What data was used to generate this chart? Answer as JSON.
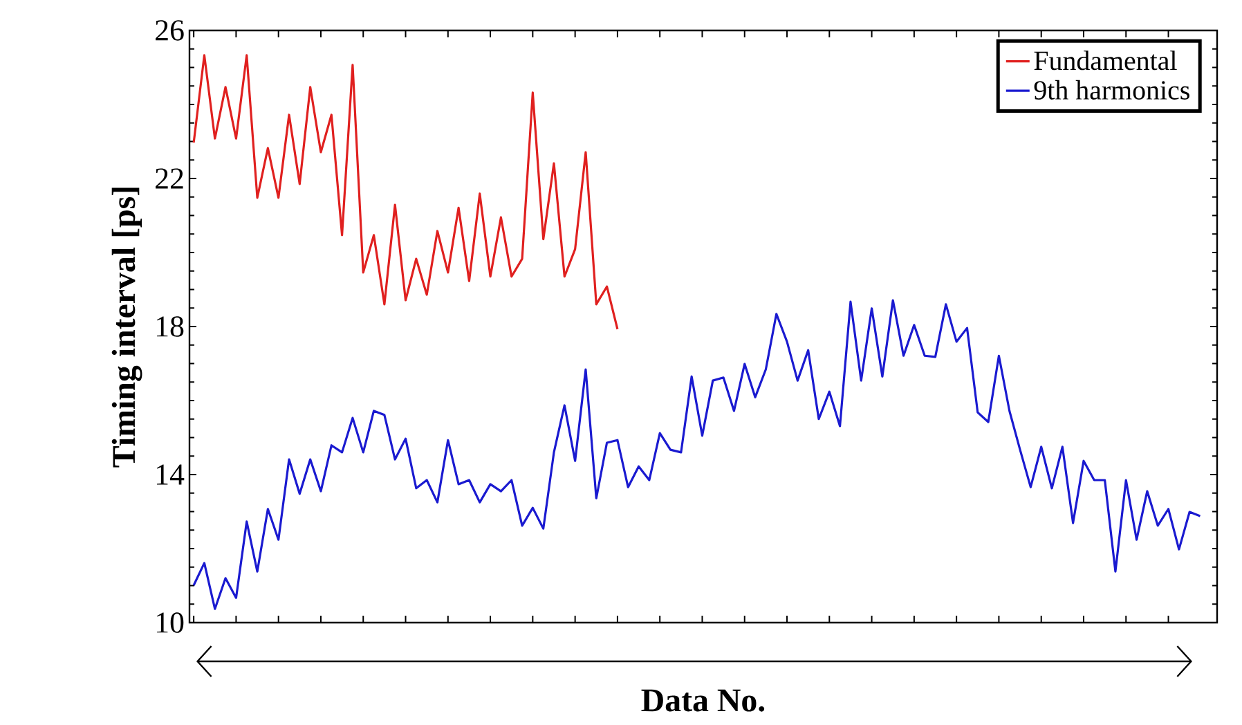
{
  "chart_data": {
    "type": "line",
    "xlabel": "Data No.",
    "ylabel": "Timing interval [ps]",
    "categories": [
      null,
      null,
      null,
      null,
      null,
      null,
      null,
      null,
      null,
      null,
      null,
      null,
      null,
      null,
      null,
      null,
      null,
      null,
      null,
      null,
      null,
      null,
      null,
      null,
      null,
      null,
      null,
      null,
      null,
      null,
      null,
      null,
      null,
      null,
      null,
      null,
      null,
      null,
      null,
      null,
      null,
      null,
      null,
      null,
      null,
      null,
      null,
      null,
      null,
      null,
      null,
      null,
      null,
      null,
      null,
      null,
      null,
      null,
      null,
      null,
      null,
      null,
      null,
      null,
      null,
      null,
      null,
      null,
      null,
      null,
      null,
      null,
      null,
      null,
      null,
      null,
      null,
      null,
      null,
      null,
      null,
      null,
      null,
      null,
      null,
      null,
      null,
      null,
      null,
      null,
      null,
      null,
      null,
      null,
      null,
      null
    ],
    "ylim": [
      10,
      26
    ],
    "yticks": [
      10,
      14,
      18,
      22,
      26
    ],
    "legend": "top right",
    "marker": "none",
    "line_style": "solid",
    "series": [
      {
        "name": "Fundamental",
        "color": "#e0201f",
        "values": [
          22.97,
          25.33,
          23.08,
          24.47,
          23.08,
          25.33,
          21.48,
          22.82,
          21.48,
          23.72,
          21.85,
          24.47,
          22.71,
          23.72,
          20.47,
          25.07,
          19.46,
          20.47,
          18.6,
          21.29,
          18.71,
          19.83,
          18.86,
          20.58,
          19.46,
          21.21,
          19.23,
          21.59,
          19.35,
          20.95,
          19.35,
          19.83,
          24.32,
          20.36,
          22.41,
          19.35,
          20.09,
          22.71,
          18.6,
          19.08,
          17.93,
          null,
          null,
          null,
          null,
          null,
          null,
          null,
          null,
          null,
          null,
          null,
          null,
          null,
          null,
          null,
          null,
          null,
          null,
          null,
          null,
          null,
          null,
          null,
          null,
          null,
          null,
          null,
          null,
          null,
          null,
          null,
          null,
          null,
          null,
          null,
          null,
          null,
          null,
          null,
          null,
          null,
          null,
          null,
          null,
          null,
          null,
          null,
          null,
          null,
          null,
          null,
          null,
          null,
          null,
          null
        ]
      },
      {
        "name": "9th harmonics",
        "color": "#1a1ad0",
        "values": [
          11.01,
          11.61,
          10.37,
          11.2,
          10.67,
          12.73,
          11.38,
          13.07,
          12.24,
          14.41,
          13.48,
          14.41,
          13.55,
          14.79,
          14.6,
          15.53,
          14.6,
          15.72,
          15.61,
          14.41,
          14.97,
          13.63,
          13.85,
          13.25,
          14.93,
          13.74,
          13.85,
          13.25,
          13.74,
          13.55,
          13.85,
          12.62,
          13.1,
          12.54,
          14.6,
          15.87,
          14.37,
          16.84,
          13.36,
          14.86,
          14.93,
          13.66,
          14.22,
          13.85,
          15.12,
          14.67,
          14.6,
          16.65,
          15.05,
          16.54,
          16.62,
          15.72,
          16.99,
          16.09,
          16.84,
          18.34,
          17.59,
          16.54,
          17.36,
          15.5,
          16.24,
          15.31,
          18.67,
          16.54,
          18.49,
          16.65,
          18.71,
          17.21,
          18.04,
          17.21,
          17.18,
          18.6,
          17.59,
          17.96,
          15.68,
          15.42,
          17.21,
          15.72,
          14.67,
          13.66,
          14.75,
          13.63,
          14.75,
          12.69,
          14.37,
          13.85,
          13.85,
          11.38,
          13.85,
          12.24,
          13.55,
          12.62,
          13.07,
          11.98,
          12.99,
          12.88
        ]
      }
    ]
  }
}
